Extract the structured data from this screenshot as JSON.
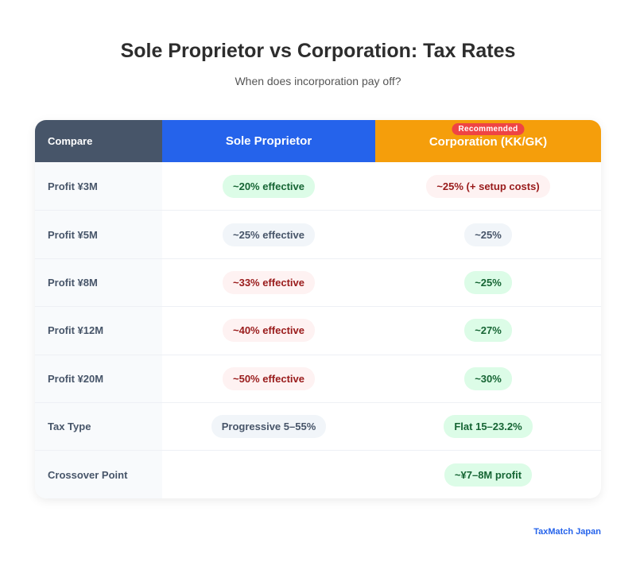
{
  "title": "Sole Proprietor vs Corporation: Tax Rates",
  "subtitle": "When does incorporation pay off?",
  "table": {
    "headers": [
      "Compare",
      "Sole Proprietor",
      "Corporation (KK/GK)"
    ],
    "recommended_badge": "Recommended",
    "colors": {
      "compare": "#475569",
      "sole": "#2563eb",
      "corp": "#f59e0b",
      "badge": "#ef4444"
    },
    "rows": [
      {
        "label": "Profit ¥3M",
        "sole": "~20% effective",
        "sole_tone": "green",
        "corp": "~25% (+ setup costs)",
        "corp_tone": "red"
      },
      {
        "label": "Profit ¥5M",
        "sole": "~25% effective",
        "sole_tone": "gray",
        "corp": "~25%",
        "corp_tone": "gray"
      },
      {
        "label": "Profit ¥8M",
        "sole": "~33% effective",
        "sole_tone": "red",
        "corp": "~25%",
        "corp_tone": "green"
      },
      {
        "label": "Profit ¥12M",
        "sole": "~40% effective",
        "sole_tone": "red",
        "corp": "~27%",
        "corp_tone": "green"
      },
      {
        "label": "Profit ¥20M",
        "sole": "~50% effective",
        "sole_tone": "red",
        "corp": "~30%",
        "corp_tone": "green"
      },
      {
        "label": "Tax Type",
        "sole": "Progressive 5–55%",
        "sole_tone": "gray",
        "corp": "Flat 15–23.2%",
        "corp_tone": "green"
      },
      {
        "label": "Crossover Point",
        "sole": "",
        "sole_tone": "",
        "corp": "~¥7–8M profit",
        "corp_tone": "green"
      }
    ]
  },
  "footer": "TaxMatch Japan"
}
